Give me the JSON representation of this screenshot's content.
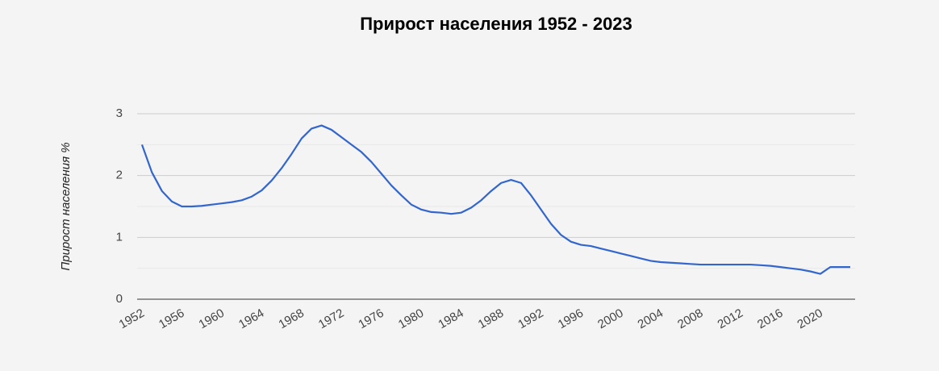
{
  "chart_data": {
    "type": "line",
    "title": "Прирост населения 1952 - 2023",
    "y_label": "Прирост населения %",
    "x": [
      1952,
      1953,
      1954,
      1955,
      1956,
      1957,
      1958,
      1959,
      1960,
      1961,
      1962,
      1963,
      1964,
      1965,
      1966,
      1967,
      1968,
      1969,
      1970,
      1971,
      1972,
      1973,
      1974,
      1975,
      1976,
      1977,
      1978,
      1979,
      1980,
      1981,
      1982,
      1983,
      1984,
      1985,
      1986,
      1987,
      1988,
      1989,
      1990,
      1991,
      1992,
      1993,
      1994,
      1995,
      1996,
      1997,
      1998,
      1999,
      2000,
      2001,
      2002,
      2003,
      2004,
      2005,
      2006,
      2007,
      2008,
      2009,
      2010,
      2011,
      2012,
      2013,
      2014,
      2015,
      2016,
      2017,
      2018,
      2019,
      2020,
      2021,
      2022,
      2023
    ],
    "series": [
      {
        "name": "Прирост населения %",
        "color": "#3366cc",
        "values": [
          2.5,
          2.05,
          1.75,
          1.58,
          1.5,
          1.5,
          1.51,
          1.53,
          1.55,
          1.57,
          1.6,
          1.66,
          1.76,
          1.92,
          2.12,
          2.35,
          2.6,
          2.76,
          2.81,
          2.74,
          2.62,
          2.5,
          2.38,
          2.22,
          2.03,
          1.84,
          1.68,
          1.53,
          1.45,
          1.41,
          1.4,
          1.38,
          1.4,
          1.48,
          1.6,
          1.75,
          1.88,
          1.93,
          1.88,
          1.68,
          1.45,
          1.22,
          1.04,
          0.93,
          0.88,
          0.86,
          0.82,
          0.78,
          0.74,
          0.7,
          0.66,
          0.62,
          0.6,
          0.59,
          0.58,
          0.57,
          0.56,
          0.56,
          0.56,
          0.56,
          0.56,
          0.56,
          0.55,
          0.54,
          0.52,
          0.5,
          0.48,
          0.45,
          0.41,
          0.52,
          0.52,
          0.52
        ]
      }
    ],
    "xlim": [
      1952,
      2023
    ],
    "xticks": [
      1952,
      1956,
      1960,
      1964,
      1968,
      1972,
      1976,
      1980,
      1984,
      1988,
      1992,
      1996,
      2000,
      2004,
      2008,
      2012,
      2016,
      2020
    ],
    "ylim": [
      0,
      3
    ],
    "yticks": [
      0,
      1,
      2,
      3
    ],
    "minor_yticks": [
      0.5,
      1.5,
      2.5
    ],
    "grid": true
  }
}
